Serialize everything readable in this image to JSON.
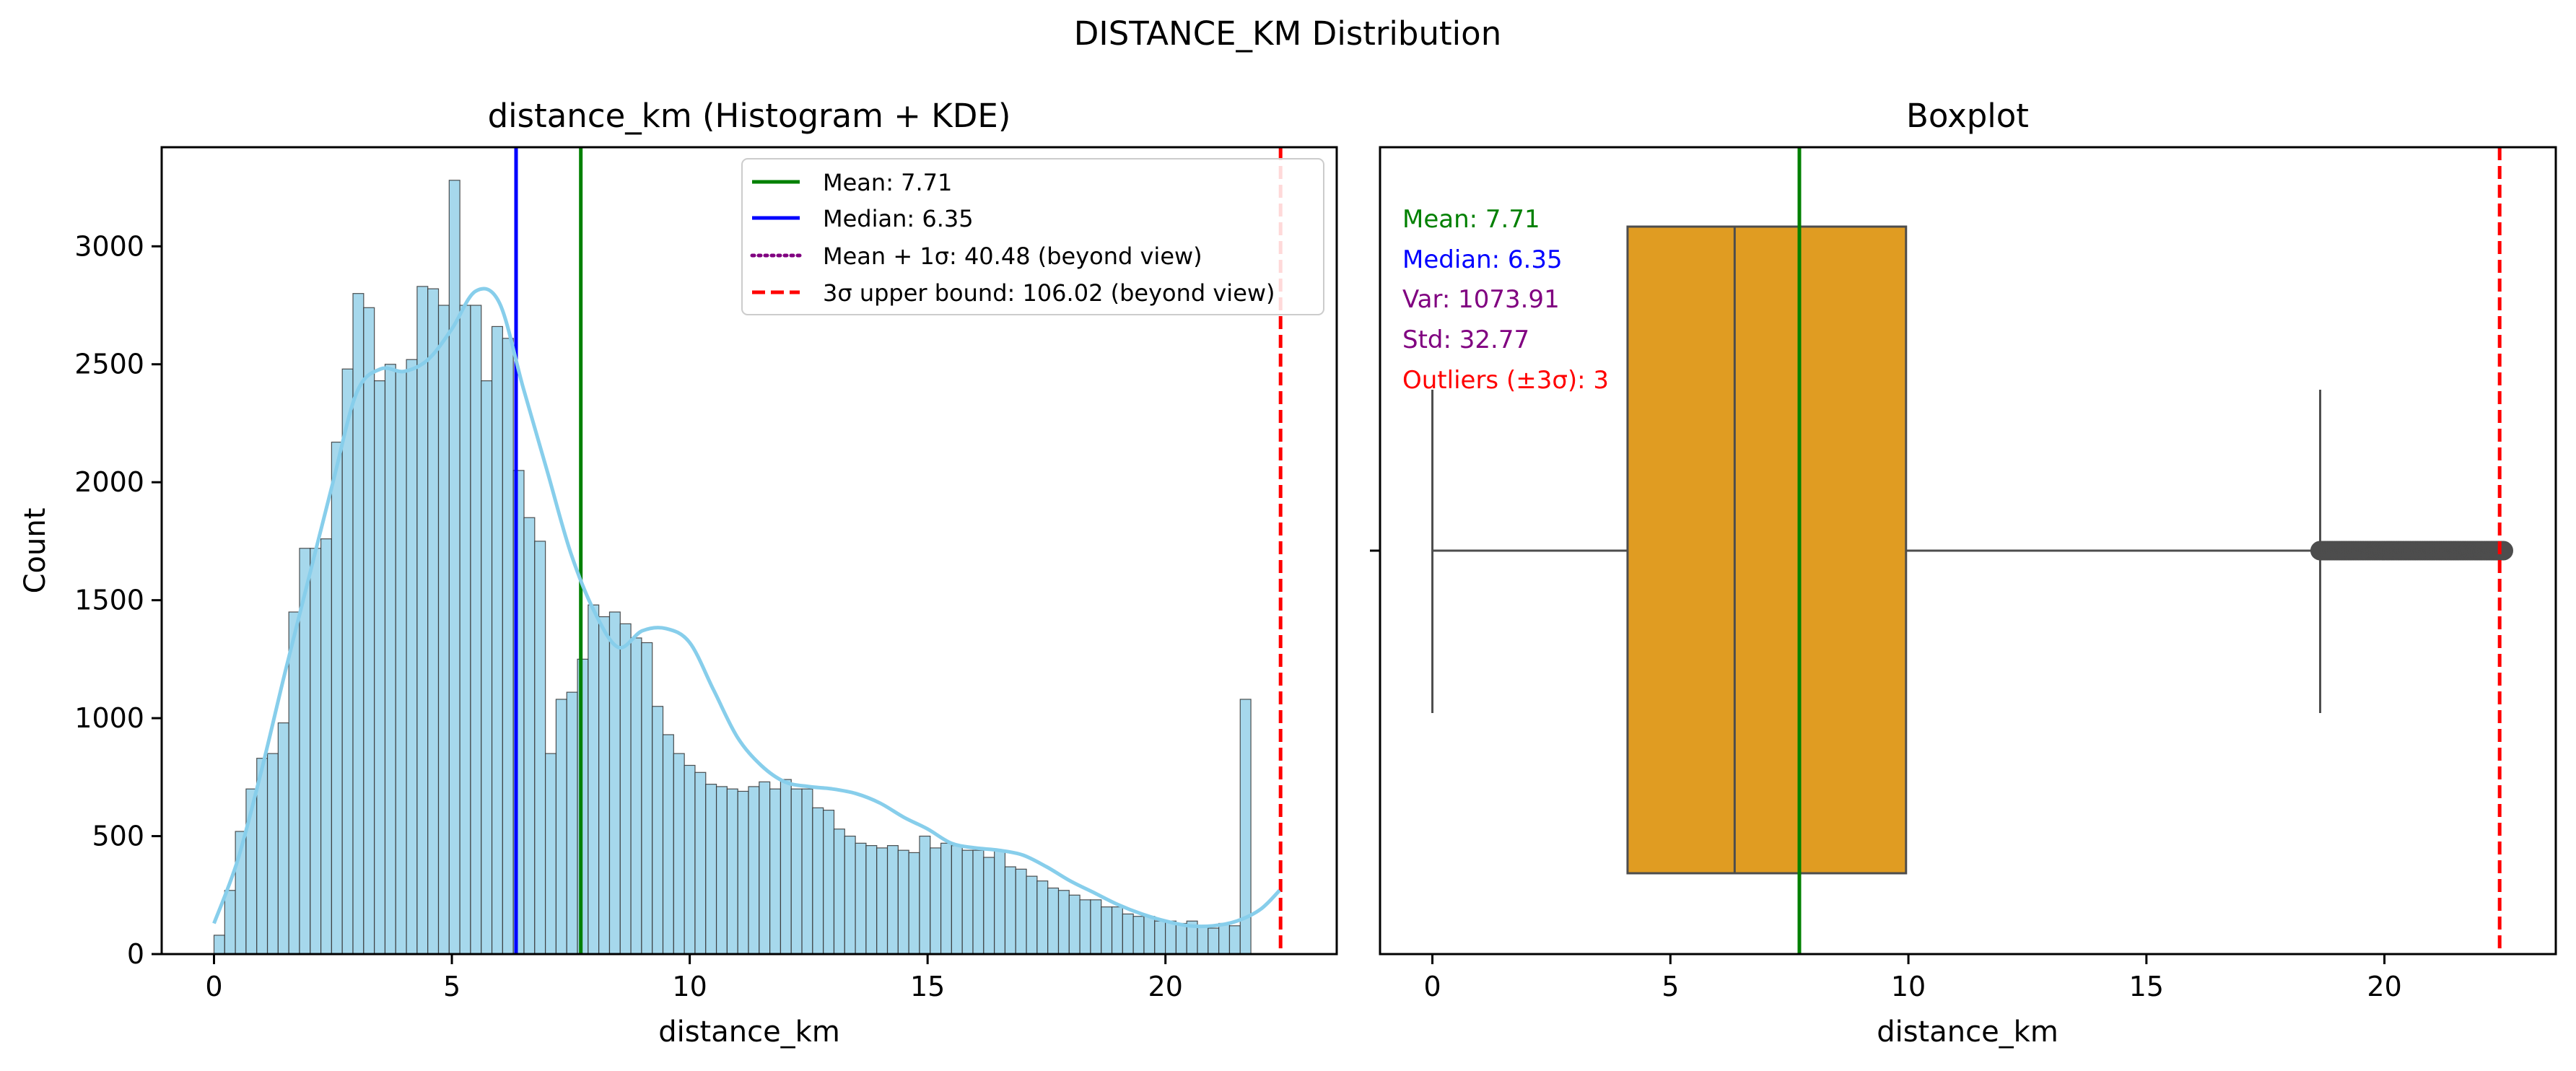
{
  "figure": {
    "suptitle": "DISTANCE_KM Distribution"
  },
  "chart_data": [
    {
      "type": "bar",
      "title": "distance_km (Histogram + KDE)",
      "xlabel": "distance_km",
      "ylabel": "Count",
      "xlim": [
        -1.1,
        23.6
      ],
      "ylim": [
        0,
        3420
      ],
      "xticks": [
        0,
        5,
        10,
        15,
        20
      ],
      "yticks": [
        0,
        500,
        1000,
        1500,
        2000,
        2500,
        3000
      ],
      "grid": false,
      "legend_position": "upper right",
      "bin_start": 0.0,
      "bin_width": 0.2247,
      "counts": [
        80,
        270,
        520,
        700,
        830,
        850,
        980,
        1450,
        1720,
        1720,
        1760,
        2170,
        2480,
        2800,
        2740,
        2430,
        2500,
        2470,
        2520,
        2830,
        2820,
        2750,
        3280,
        2750,
        2750,
        2430,
        2660,
        2610,
        2050,
        1850,
        1750,
        850,
        1080,
        1110,
        1250,
        1480,
        1430,
        1450,
        1400,
        1340,
        1320,
        1050,
        930,
        850,
        800,
        770,
        720,
        710,
        700,
        690,
        710,
        730,
        700,
        740,
        700,
        700,
        620,
        610,
        530,
        500,
        470,
        460,
        450,
        460,
        440,
        430,
        500,
        450,
        470,
        460,
        440,
        440,
        410,
        440,
        370,
        360,
        330,
        310,
        280,
        270,
        250,
        230,
        230,
        200,
        200,
        170,
        160,
        160,
        140,
        140,
        130,
        140,
        120,
        110,
        130,
        120,
        1080
      ],
      "kde_x": [
        0.0,
        0.5,
        1.0,
        1.5,
        2.0,
        2.5,
        3.0,
        3.5,
        4.0,
        4.5,
        5.0,
        5.5,
        6.0,
        6.5,
        7.0,
        7.5,
        8.0,
        8.5,
        9.0,
        9.5,
        10.0,
        10.5,
        11.0,
        11.5,
        12.0,
        12.5,
        13.0,
        13.5,
        14.0,
        14.5,
        15.0,
        15.5,
        16.0,
        16.5,
        17.0,
        17.5,
        18.0,
        18.5,
        19.0,
        19.5,
        20.0,
        20.5,
        21.0,
        21.5,
        22.0,
        22.4
      ],
      "kde_y": [
        130,
        400,
        780,
        1200,
        1600,
        2000,
        2380,
        2480,
        2470,
        2520,
        2650,
        2810,
        2760,
        2400,
        2050,
        1700,
        1450,
        1300,
        1370,
        1380,
        1320,
        1120,
        920,
        800,
        730,
        710,
        700,
        680,
        640,
        580,
        530,
        470,
        450,
        440,
        420,
        370,
        310,
        260,
        210,
        170,
        140,
        120,
        120,
        140,
        190,
        270
      ],
      "vlines": [
        {
          "label": "Mean: 7.71",
          "x": 7.71,
          "color": "#008000",
          "style": "solid"
        },
        {
          "label": "Median: 6.35",
          "x": 6.35,
          "color": "#0000ff",
          "style": "solid"
        },
        {
          "label": "Mean + 1σ: 40.48 (beyond view)",
          "x": null,
          "color": "#800080",
          "style": "dotted"
        },
        {
          "label": "3σ upper bound: 106.02 (beyond view)",
          "x": 22.42,
          "color": "#ff0000",
          "style": "dashed"
        }
      ],
      "colors": {
        "bars": "#a6d8ec",
        "kde": "#87ceeb",
        "bar_edge": "#333333"
      }
    },
    {
      "type": "box",
      "title": "Boxplot",
      "xlabel": "distance_km",
      "xlim": [
        -1.1,
        23.6
      ],
      "xticks": [
        0,
        5,
        10,
        15,
        20
      ],
      "grid": false,
      "box": {
        "whisker_low": 0.0,
        "q1": 4.1,
        "median": 6.35,
        "q3": 9.95,
        "whisker_high": 18.65,
        "outliers_from": 18.65,
        "outliers_to": 22.5
      },
      "vlines": [
        {
          "x": 7.71,
          "color": "#008000",
          "style": "solid"
        },
        {
          "x": 22.42,
          "color": "#ff0000",
          "style": "dashed"
        }
      ],
      "stats_text": [
        {
          "text": "Mean: 7.71",
          "color": "#008000"
        },
        {
          "text": "Median: 6.35",
          "color": "#0000ff"
        },
        {
          "text": "Var: 1073.91",
          "color": "#800080"
        },
        {
          "text": "Std: 32.77",
          "color": "#800080"
        },
        {
          "text": "Outliers (±3σ): 3",
          "color": "#ff0000"
        }
      ],
      "colors": {
        "box": "#e09c22",
        "lines": "#4d4d4d"
      }
    }
  ]
}
